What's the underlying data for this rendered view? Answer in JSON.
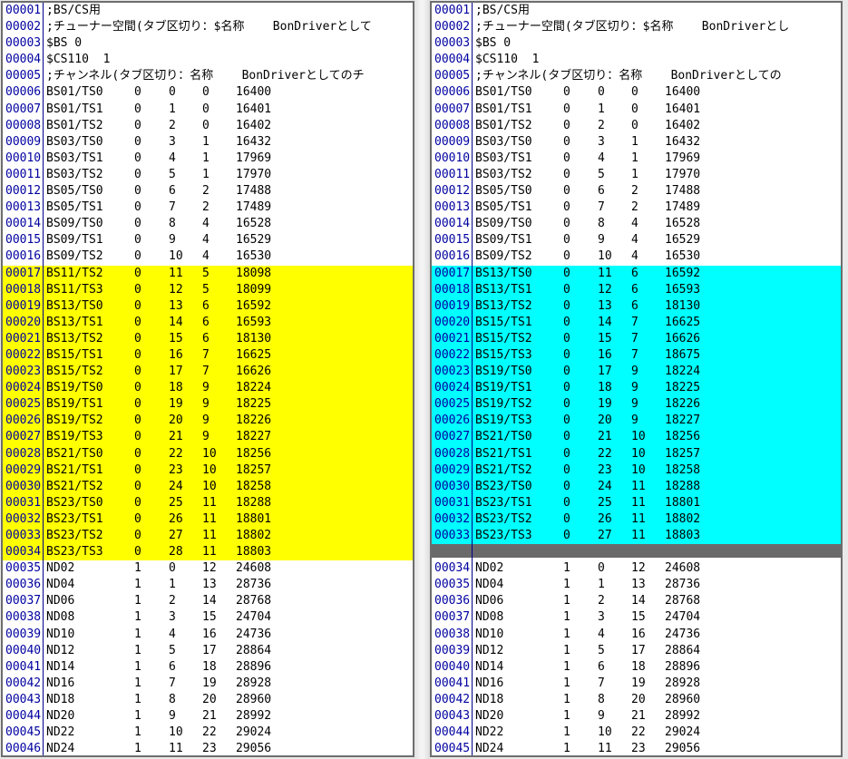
{
  "colors": {
    "diff_left_highlight": "#ffff00",
    "diff_right_highlight": "#00ffff",
    "ghost_line": "#6a6a6a",
    "line_number_text": "#0000a0",
    "gutter_separator": "#00008c",
    "panel_border": "#6d6d6d",
    "panel_background": "#ffffff",
    "window_background": "#e9e9e9"
  },
  "panels": [
    {
      "side": "left",
      "lines": [
        {
          "num": "00001",
          "text": ";BS/CS用"
        },
        {
          "num": "00002",
          "text": ";チューナー空間(タブ区切り：$名称    BonDriverとして"
        },
        {
          "num": "00003",
          "text": "$BS 0"
        },
        {
          "num": "00004",
          "text": "$CS110  1"
        },
        {
          "num": "00005",
          "text": ";チャンネル(タブ区切り：名称    BonDriverとしてのチ"
        },
        {
          "num": "00006",
          "fields": [
            "BS01/TS0",
            "0",
            "0",
            "0",
            "16400"
          ]
        },
        {
          "num": "00007",
          "fields": [
            "BS01/TS1",
            "0",
            "1",
            "0",
            "16401"
          ]
        },
        {
          "num": "00008",
          "fields": [
            "BS01/TS2",
            "0",
            "2",
            "0",
            "16402"
          ]
        },
        {
          "num": "00009",
          "fields": [
            "BS03/TS0",
            "0",
            "3",
            "1",
            "16432"
          ]
        },
        {
          "num": "00010",
          "fields": [
            "BS03/TS1",
            "0",
            "4",
            "1",
            "17969"
          ]
        },
        {
          "num": "00011",
          "fields": [
            "BS03/TS2",
            "0",
            "5",
            "1",
            "17970"
          ]
        },
        {
          "num": "00012",
          "fields": [
            "BS05/TS0",
            "0",
            "6",
            "2",
            "17488"
          ]
        },
        {
          "num": "00013",
          "fields": [
            "BS05/TS1",
            "0",
            "7",
            "2",
            "17489"
          ]
        },
        {
          "num": "00014",
          "fields": [
            "BS09/TS0",
            "0",
            "8",
            "4",
            "16528"
          ]
        },
        {
          "num": "00015",
          "fields": [
            "BS09/TS1",
            "0",
            "9",
            "4",
            "16529"
          ]
        },
        {
          "num": "00016",
          "fields": [
            "BS09/TS2",
            "0",
            "10",
            "4",
            "16530"
          ]
        },
        {
          "num": "00017",
          "fields": [
            "BS11/TS2",
            "0",
            "11",
            "5",
            "18098"
          ],
          "hl": "yellow"
        },
        {
          "num": "00018",
          "fields": [
            "BS11/TS3",
            "0",
            "12",
            "5",
            "18099"
          ],
          "hl": "yellow"
        },
        {
          "num": "00019",
          "fields": [
            "BS13/TS0",
            "0",
            "13",
            "6",
            "16592"
          ],
          "hl": "yellow"
        },
        {
          "num": "00020",
          "fields": [
            "BS13/TS1",
            "0",
            "14",
            "6",
            "16593"
          ],
          "hl": "yellow"
        },
        {
          "num": "00021",
          "fields": [
            "BS13/TS2",
            "0",
            "15",
            "6",
            "18130"
          ],
          "hl": "yellow"
        },
        {
          "num": "00022",
          "fields": [
            "BS15/TS1",
            "0",
            "16",
            "7",
            "16625"
          ],
          "hl": "yellow"
        },
        {
          "num": "00023",
          "fields": [
            "BS15/TS2",
            "0",
            "17",
            "7",
            "16626"
          ],
          "hl": "yellow"
        },
        {
          "num": "00024",
          "fields": [
            "BS19/TS0",
            "0",
            "18",
            "9",
            "18224"
          ],
          "hl": "yellow"
        },
        {
          "num": "00025",
          "fields": [
            "BS19/TS1",
            "0",
            "19",
            "9",
            "18225"
          ],
          "hl": "yellow"
        },
        {
          "num": "00026",
          "fields": [
            "BS19/TS2",
            "0",
            "20",
            "9",
            "18226"
          ],
          "hl": "yellow"
        },
        {
          "num": "00027",
          "fields": [
            "BS19/TS3",
            "0",
            "21",
            "9",
            "18227"
          ],
          "hl": "yellow"
        },
        {
          "num": "00028",
          "fields": [
            "BS21/TS0",
            "0",
            "22",
            "10",
            "18256"
          ],
          "hl": "yellow"
        },
        {
          "num": "00029",
          "fields": [
            "BS21/TS1",
            "0",
            "23",
            "10",
            "18257"
          ],
          "hl": "yellow"
        },
        {
          "num": "00030",
          "fields": [
            "BS21/TS2",
            "0",
            "24",
            "10",
            "18258"
          ],
          "hl": "yellow"
        },
        {
          "num": "00031",
          "fields": [
            "BS23/TS0",
            "0",
            "25",
            "11",
            "18288"
          ],
          "hl": "yellow"
        },
        {
          "num": "00032",
          "fields": [
            "BS23/TS1",
            "0",
            "26",
            "11",
            "18801"
          ],
          "hl": "yellow"
        },
        {
          "num": "00033",
          "fields": [
            "BS23/TS2",
            "0",
            "27",
            "11",
            "18802"
          ],
          "hl": "yellow"
        },
        {
          "num": "00034",
          "fields": [
            "BS23/TS3",
            "0",
            "28",
            "11",
            "18803"
          ],
          "hl": "yellow"
        },
        {
          "num": "00035",
          "fields": [
            "ND02",
            "1",
            "0",
            "12",
            "24608"
          ]
        },
        {
          "num": "00036",
          "fields": [
            "ND04",
            "1",
            "1",
            "13",
            "28736"
          ]
        },
        {
          "num": "00037",
          "fields": [
            "ND06",
            "1",
            "2",
            "14",
            "28768"
          ]
        },
        {
          "num": "00038",
          "fields": [
            "ND08",
            "1",
            "3",
            "15",
            "24704"
          ]
        },
        {
          "num": "00039",
          "fields": [
            "ND10",
            "1",
            "4",
            "16",
            "24736"
          ]
        },
        {
          "num": "00040",
          "fields": [
            "ND12",
            "1",
            "5",
            "17",
            "28864"
          ]
        },
        {
          "num": "00041",
          "fields": [
            "ND14",
            "1",
            "6",
            "18",
            "28896"
          ]
        },
        {
          "num": "00042",
          "fields": [
            "ND16",
            "1",
            "7",
            "19",
            "28928"
          ]
        },
        {
          "num": "00043",
          "fields": [
            "ND18",
            "1",
            "8",
            "20",
            "28960"
          ]
        },
        {
          "num": "00044",
          "fields": [
            "ND20",
            "1",
            "9",
            "21",
            "28992"
          ]
        },
        {
          "num": "00045",
          "fields": [
            "ND22",
            "1",
            "10",
            "22",
            "29024"
          ]
        },
        {
          "num": "00046",
          "fields": [
            "ND24",
            "1",
            "11",
            "23",
            "29056"
          ]
        }
      ]
    },
    {
      "side": "right",
      "lines": [
        {
          "num": "00001",
          "text": ";BS/CS用"
        },
        {
          "num": "00002",
          "text": ";チューナー空間(タブ区切り：$名称    BonDriverとし"
        },
        {
          "num": "00003",
          "text": "$BS 0"
        },
        {
          "num": "00004",
          "text": "$CS110  1"
        },
        {
          "num": "00005",
          "text": ";チャンネル(タブ区切り：名称    BonDriverとしての"
        },
        {
          "num": "00006",
          "fields": [
            "BS01/TS0",
            "0",
            "0",
            "0",
            "16400"
          ]
        },
        {
          "num": "00007",
          "fields": [
            "BS01/TS1",
            "0",
            "1",
            "0",
            "16401"
          ]
        },
        {
          "num": "00008",
          "fields": [
            "BS01/TS2",
            "0",
            "2",
            "0",
            "16402"
          ]
        },
        {
          "num": "00009",
          "fields": [
            "BS03/TS0",
            "0",
            "3",
            "1",
            "16432"
          ]
        },
        {
          "num": "00010",
          "fields": [
            "BS03/TS1",
            "0",
            "4",
            "1",
            "17969"
          ]
        },
        {
          "num": "00011",
          "fields": [
            "BS03/TS2",
            "0",
            "5",
            "1",
            "17970"
          ]
        },
        {
          "num": "00012",
          "fields": [
            "BS05/TS0",
            "0",
            "6",
            "2",
            "17488"
          ]
        },
        {
          "num": "00013",
          "fields": [
            "BS05/TS1",
            "0",
            "7",
            "2",
            "17489"
          ]
        },
        {
          "num": "00014",
          "fields": [
            "BS09/TS0",
            "0",
            "8",
            "4",
            "16528"
          ]
        },
        {
          "num": "00015",
          "fields": [
            "BS09/TS1",
            "0",
            "9",
            "4",
            "16529"
          ]
        },
        {
          "num": "00016",
          "fields": [
            "BS09/TS2",
            "0",
            "10",
            "4",
            "16530"
          ]
        },
        {
          "num": "00017",
          "fields": [
            "BS13/TS0",
            "0",
            "11",
            "6",
            "16592"
          ],
          "hl": "cyan"
        },
        {
          "num": "00018",
          "fields": [
            "BS13/TS1",
            "0",
            "12",
            "6",
            "16593"
          ],
          "hl": "cyan"
        },
        {
          "num": "00019",
          "fields": [
            "BS13/TS2",
            "0",
            "13",
            "6",
            "18130"
          ],
          "hl": "cyan"
        },
        {
          "num": "00020",
          "fields": [
            "BS15/TS1",
            "0",
            "14",
            "7",
            "16625"
          ],
          "hl": "cyan"
        },
        {
          "num": "00021",
          "fields": [
            "BS15/TS2",
            "0",
            "15",
            "7",
            "16626"
          ],
          "hl": "cyan"
        },
        {
          "num": "00022",
          "fields": [
            "BS15/TS3",
            "0",
            "16",
            "7",
            "18675"
          ],
          "hl": "cyan"
        },
        {
          "num": "00023",
          "fields": [
            "BS19/TS0",
            "0",
            "17",
            "9",
            "18224"
          ],
          "hl": "cyan"
        },
        {
          "num": "00024",
          "fields": [
            "BS19/TS1",
            "0",
            "18",
            "9",
            "18225"
          ],
          "hl": "cyan"
        },
        {
          "num": "00025",
          "fields": [
            "BS19/TS2",
            "0",
            "19",
            "9",
            "18226"
          ],
          "hl": "cyan"
        },
        {
          "num": "00026",
          "fields": [
            "BS19/TS3",
            "0",
            "20",
            "9",
            "18227"
          ],
          "hl": "cyan"
        },
        {
          "num": "00027",
          "fields": [
            "BS21/TS0",
            "0",
            "21",
            "10",
            "18256"
          ],
          "hl": "cyan"
        },
        {
          "num": "00028",
          "fields": [
            "BS21/TS1",
            "0",
            "22",
            "10",
            "18257"
          ],
          "hl": "cyan"
        },
        {
          "num": "00029",
          "fields": [
            "BS21/TS2",
            "0",
            "23",
            "10",
            "18258"
          ],
          "hl": "cyan"
        },
        {
          "num": "00030",
          "fields": [
            "BS23/TS0",
            "0",
            "24",
            "11",
            "18288"
          ],
          "hl": "cyan"
        },
        {
          "num": "00031",
          "fields": [
            "BS23/TS1",
            "0",
            "25",
            "11",
            "18801"
          ],
          "hl": "cyan"
        },
        {
          "num": "00032",
          "fields": [
            "BS23/TS2",
            "0",
            "26",
            "11",
            "18802"
          ],
          "hl": "cyan"
        },
        {
          "num": "00033",
          "fields": [
            "BS23/TS3",
            "0",
            "27",
            "11",
            "18803"
          ],
          "hl": "cyan"
        },
        {
          "ghost": true
        },
        {
          "num": "00034",
          "fields": [
            "ND02",
            "1",
            "0",
            "12",
            "24608"
          ]
        },
        {
          "num": "00035",
          "fields": [
            "ND04",
            "1",
            "1",
            "13",
            "28736"
          ]
        },
        {
          "num": "00036",
          "fields": [
            "ND06",
            "1",
            "2",
            "14",
            "28768"
          ]
        },
        {
          "num": "00037",
          "fields": [
            "ND08",
            "1",
            "3",
            "15",
            "24704"
          ]
        },
        {
          "num": "00038",
          "fields": [
            "ND10",
            "1",
            "4",
            "16",
            "24736"
          ]
        },
        {
          "num": "00039",
          "fields": [
            "ND12",
            "1",
            "5",
            "17",
            "28864"
          ]
        },
        {
          "num": "00040",
          "fields": [
            "ND14",
            "1",
            "6",
            "18",
            "28896"
          ]
        },
        {
          "num": "00041",
          "fields": [
            "ND16",
            "1",
            "7",
            "19",
            "28928"
          ]
        },
        {
          "num": "00042",
          "fields": [
            "ND18",
            "1",
            "8",
            "20",
            "28960"
          ]
        },
        {
          "num": "00043",
          "fields": [
            "ND20",
            "1",
            "9",
            "21",
            "28992"
          ]
        },
        {
          "num": "00044",
          "fields": [
            "ND22",
            "1",
            "10",
            "22",
            "29024"
          ]
        },
        {
          "num": "00045",
          "fields": [
            "ND24",
            "1",
            "11",
            "23",
            "29056"
          ]
        }
      ]
    }
  ]
}
